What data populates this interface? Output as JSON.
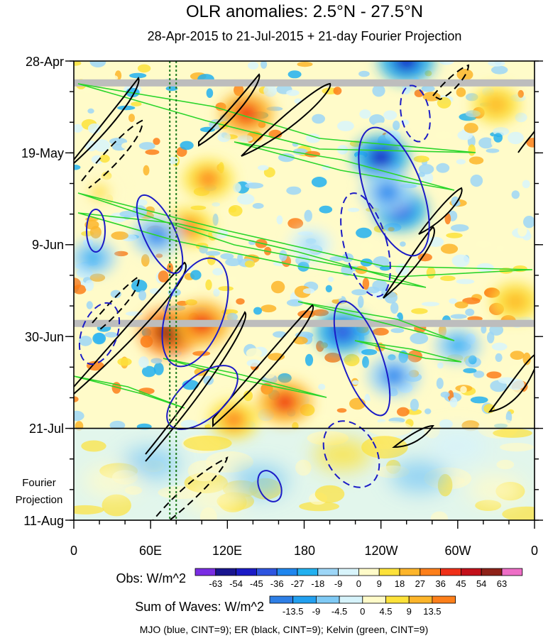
{
  "chart_data": {
    "type": "heatmap",
    "title": "OLR anomalies: 2.5°N - 27.5°N",
    "subtitle": "28-Apr-2015 to 21-Jul-2015 + 21-day Fourier Projection",
    "x_ticks": [
      "0",
      "60E",
      "120E",
      "180",
      "120W",
      "60W",
      "0"
    ],
    "x_range_deg_east": [
      0,
      360
    ],
    "y_ticks": [
      "28-Apr",
      "19-May",
      "9-Jun",
      "30-Jun",
      "21-Jul",
      "11-Aug"
    ],
    "y_tick_days": [
      0,
      21,
      42,
      63,
      84,
      105
    ],
    "obs_end_label": "21-Jul",
    "projection_label_line1": "Fourier",
    "projection_label_line2": "Projection",
    "legend_obs": {
      "title": "Obs: W/m^2",
      "labels": [
        "-63",
        "-54",
        "-45",
        "-36",
        "-27",
        "-18",
        "-9",
        "0",
        "9",
        "18",
        "27",
        "36",
        "45",
        "54",
        "63"
      ],
      "colors": [
        "#7a2de3",
        "#19158f",
        "#1b1bc6",
        "#2e55e0",
        "#1f86ee",
        "#22b0f0",
        "#9dd6f7",
        "#d8f4fb",
        "#fffbc9",
        "#fde23a",
        "#fdb52a",
        "#fd7f1a",
        "#f03018",
        "#c3101a",
        "#8e2218",
        "#ee6ec6"
      ]
    },
    "legend_waves": {
      "title": "Sum of Waves: W/m^2",
      "labels": [
        "-13.5",
        "-9",
        "-4.5",
        "0",
        "4.5",
        "9",
        "13.5"
      ],
      "colors": [
        "#2e7fe6",
        "#22a0f0",
        "#7fcaf5",
        "#d6f3fb",
        "#fffbc9",
        "#fde23a",
        "#fdb52a",
        "#fd7f1a"
      ]
    },
    "footnote": "MJO (blue, CINT=9); ER (black, CINT=9); Kelvin (green, CINT=9)",
    "contour_series": [
      {
        "wave": "MJO",
        "color": "#1b1bc6",
        "cint": 9
      },
      {
        "wave": "ER",
        "color": "#000000",
        "cint": 9
      },
      {
        "wave": "Kelvin",
        "color": "#22cc22",
        "cint": 9
      }
    ],
    "reference_lines_lon_deg_east": [
      75,
      80
    ],
    "missing_data_days": [
      5,
      60
    ],
    "anomaly_blobs": [
      {
        "lon": 135,
        "day": 12,
        "value": 40
      },
      {
        "lon": 105,
        "day": 27,
        "value": 30
      },
      {
        "lon": 90,
        "day": 38,
        "value": 28
      },
      {
        "lon": 75,
        "day": 62,
        "value": 55
      },
      {
        "lon": 100,
        "day": 60,
        "value": 45
      },
      {
        "lon": 165,
        "day": 78,
        "value": 40
      },
      {
        "lon": 125,
        "day": 82,
        "value": 30
      },
      {
        "lon": 20,
        "day": 30,
        "value": 18
      },
      {
        "lon": 330,
        "day": 10,
        "value": 25
      },
      {
        "lon": 345,
        "day": 55,
        "value": 25
      },
      {
        "lon": 240,
        "day": 22,
        "value": -45
      },
      {
        "lon": 255,
        "day": 34,
        "value": -40
      },
      {
        "lon": 245,
        "day": 30,
        "value": -35
      },
      {
        "lon": 210,
        "day": 62,
        "value": -40
      },
      {
        "lon": 250,
        "day": 72,
        "value": -35
      },
      {
        "lon": 65,
        "day": 40,
        "value": -30
      },
      {
        "lon": 260,
        "day": 0,
        "value": -45
      },
      {
        "lon": 15,
        "day": 45,
        "value": -20
      },
      {
        "lon": 300,
        "day": 65,
        "value": -20
      },
      {
        "lon": 185,
        "day": 42,
        "value": -15
      }
    ],
    "projection_blobs": [
      {
        "lon": 60,
        "day": 92,
        "value": -6
      },
      {
        "lon": 145,
        "day": 96,
        "value": -8
      },
      {
        "lon": 270,
        "day": 95,
        "value": -5
      },
      {
        "lon": 300,
        "day": 88,
        "value": -4
      },
      {
        "lon": 210,
        "day": 90,
        "value": 5
      },
      {
        "lon": 30,
        "day": 96,
        "value": 3
      },
      {
        "lon": 110,
        "day": 100,
        "value": 3
      },
      {
        "lon": 330,
        "day": 98,
        "value": 3
      }
    ]
  }
}
